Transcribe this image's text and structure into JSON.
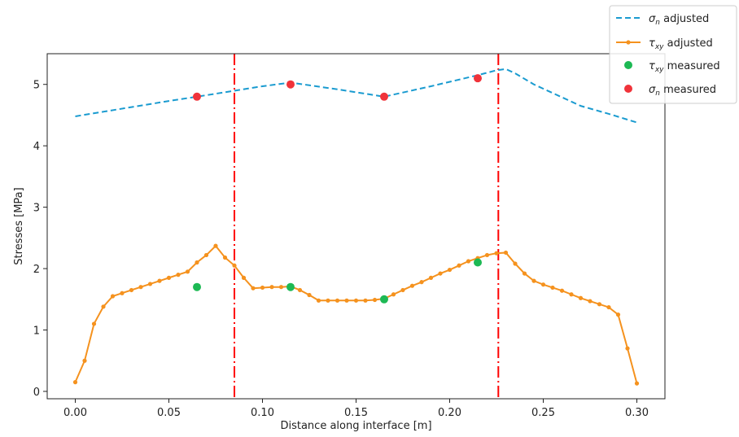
{
  "chart_data": {
    "type": "line",
    "title": "",
    "xlabel": "Distance along interface [m]",
    "ylabel": "Stresses [MPa]",
    "xlim": [
      -0.015,
      0.315
    ],
    "ylim": [
      -0.12,
      5.5
    ],
    "xticks": [
      0.0,
      0.05,
      0.1,
      0.15,
      0.2,
      0.25,
      0.3
    ],
    "xtick_labels": [
      "0.00",
      "0.05",
      "0.10",
      "0.15",
      "0.20",
      "0.25",
      "0.30"
    ],
    "yticks": [
      0,
      1,
      2,
      3,
      4,
      5
    ],
    "ytick_labels": [
      "0",
      "1",
      "2",
      "3",
      "4",
      "5"
    ],
    "grid": false,
    "legend_position": "top-right",
    "series": [
      {
        "name": "σn adjusted",
        "legend_label": "σ_n  adjusted",
        "style": "dashed",
        "color": "#1a9bd0",
        "x": [
          0.0,
          0.05,
          0.065,
          0.1,
          0.115,
          0.14,
          0.165,
          0.19,
          0.215,
          0.225,
          0.23,
          0.235,
          0.245,
          0.255,
          0.27,
          0.285,
          0.3
        ],
        "y": [
          4.48,
          4.73,
          4.8,
          4.97,
          5.03,
          4.92,
          4.8,
          4.97,
          5.15,
          5.23,
          5.25,
          5.18,
          5.0,
          4.86,
          4.65,
          4.52,
          4.38
        ]
      },
      {
        "name": "τxy adjusted",
        "legend_label": "τ_xy adjusted",
        "style": "solid-markers",
        "color": "#f5921e",
        "x": [
          0.0,
          0.005,
          0.01,
          0.015,
          0.02,
          0.025,
          0.03,
          0.035,
          0.04,
          0.045,
          0.05,
          0.055,
          0.06,
          0.065,
          0.07,
          0.075,
          0.08,
          0.085,
          0.09,
          0.095,
          0.1,
          0.105,
          0.11,
          0.115,
          0.12,
          0.125,
          0.13,
          0.135,
          0.14,
          0.145,
          0.15,
          0.155,
          0.16,
          0.165,
          0.17,
          0.175,
          0.18,
          0.185,
          0.19,
          0.195,
          0.2,
          0.205,
          0.21,
          0.215,
          0.22,
          0.225,
          0.23,
          0.235,
          0.24,
          0.245,
          0.25,
          0.255,
          0.26,
          0.265,
          0.27,
          0.275,
          0.28,
          0.285,
          0.29,
          0.295,
          0.3
        ],
        "y": [
          0.15,
          0.5,
          1.1,
          1.38,
          1.55,
          1.6,
          1.65,
          1.7,
          1.75,
          1.8,
          1.85,
          1.9,
          1.95,
          2.1,
          2.22,
          2.37,
          2.18,
          2.05,
          1.85,
          1.68,
          1.69,
          1.7,
          1.7,
          1.71,
          1.65,
          1.57,
          1.48,
          1.48,
          1.48,
          1.48,
          1.48,
          1.48,
          1.49,
          1.51,
          1.58,
          1.65,
          1.72,
          1.78,
          1.85,
          1.92,
          1.98,
          2.05,
          2.12,
          2.17,
          2.22,
          2.25,
          2.26,
          2.08,
          1.92,
          1.8,
          1.74,
          1.69,
          1.64,
          1.58,
          1.52,
          1.47,
          1.42,
          1.37,
          1.25,
          0.7,
          0.13
        ]
      },
      {
        "name": "τxy measured",
        "legend_label": "τ_xy measured",
        "style": "points",
        "color": "#1db954",
        "x": [
          0.065,
          0.115,
          0.165,
          0.215
        ],
        "y": [
          1.7,
          1.7,
          1.5,
          2.1
        ]
      },
      {
        "name": "σn measured",
        "legend_label": "σ_n measured",
        "style": "points",
        "color": "#f0333a",
        "x": [
          0.065,
          0.115,
          0.165,
          0.215
        ],
        "y": [
          4.8,
          5.0,
          4.8,
          5.1
        ]
      }
    ],
    "vertical_lines": {
      "style": "dash-dot",
      "color": "#ff0000",
      "x": [
        0.085,
        0.226
      ]
    },
    "legend": {
      "entries": [
        {
          "symbol": "σ",
          "sub": "n",
          "text": "  adjusted"
        },
        {
          "symbol": "τ",
          "sub": "xy",
          "text": " adjusted"
        },
        {
          "symbol": "τ",
          "sub": "xy",
          "text": " measured"
        },
        {
          "symbol": "σ",
          "sub": "n",
          "text": " measured"
        }
      ]
    }
  }
}
